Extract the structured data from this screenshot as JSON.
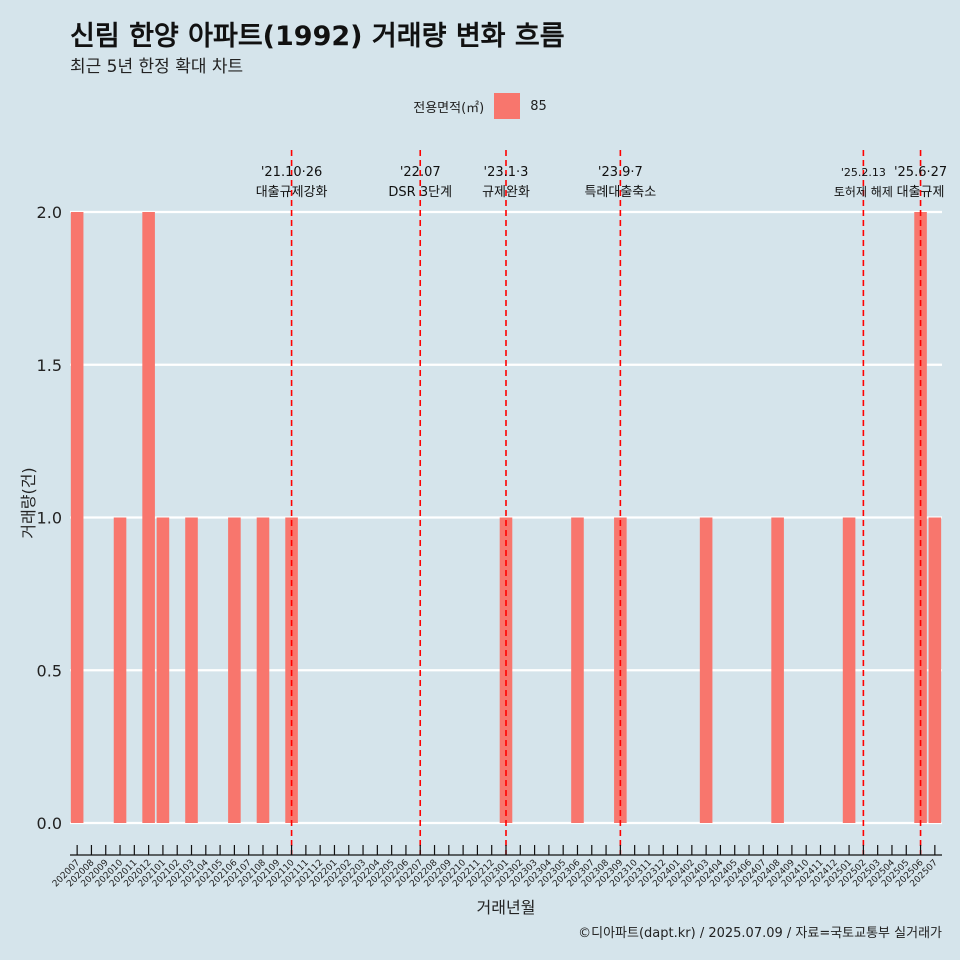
{
  "title": "신림 한양 아파트(1992) 거래량 변화 흐름",
  "subtitle": "최근 5년 한정 확대 차트",
  "caption": "©디아파트(dapt.kr) / 2025.07.09 / 자료=국토교통부 실거래가",
  "legend": {
    "title": "전용면적(㎡)",
    "item": "85"
  },
  "colors": {
    "bar": "#f8766d",
    "background": "#d5e4eb",
    "event_line": "#ff0000"
  },
  "chart_data": {
    "type": "bar",
    "xlabel": "거래년월",
    "ylabel": "거래량(건)",
    "ylim": [
      0,
      2
    ],
    "yticks": [
      "0.0",
      "0.5",
      "1.0",
      "1.5",
      "2.0"
    ],
    "yticks_values": [
      0,
      0.5,
      1.0,
      1.5,
      2.0
    ],
    "grid": true,
    "legend_position": "top",
    "categories": [
      "202007",
      "202008",
      "202009",
      "202010",
      "202011",
      "202012",
      "202101",
      "202102",
      "202103",
      "202104",
      "202105",
      "202106",
      "202107",
      "202108",
      "202109",
      "202110",
      "202111",
      "202112",
      "202201",
      "202202",
      "202203",
      "202204",
      "202205",
      "202206",
      "202207",
      "202208",
      "202209",
      "202210",
      "202211",
      "202212",
      "202301",
      "202302",
      "202303",
      "202304",
      "202305",
      "202306",
      "202307",
      "202308",
      "202309",
      "202310",
      "202311",
      "202312",
      "202401",
      "202402",
      "202403",
      "202404",
      "202405",
      "202406",
      "202407",
      "202408",
      "202409",
      "202410",
      "202411",
      "202412",
      "202501",
      "202502",
      "202503",
      "202504",
      "202505",
      "202506",
      "202507"
    ],
    "series": [
      {
        "name": "85",
        "values": [
          2,
          0,
          0,
          1,
          0,
          2,
          1,
          0,
          1,
          0,
          0,
          1,
          0,
          1,
          0,
          1,
          0,
          0,
          0,
          0,
          0,
          0,
          0,
          0,
          0,
          0,
          0,
          0,
          0,
          0,
          1,
          0,
          0,
          0,
          0,
          1,
          0,
          0,
          1,
          0,
          0,
          0,
          0,
          0,
          1,
          0,
          0,
          0,
          0,
          1,
          0,
          0,
          0,
          0,
          1,
          0,
          0,
          0,
          0,
          2,
          1
        ]
      }
    ],
    "annotations": [
      {
        "x": "202110",
        "date": "'21.10·26",
        "label": "대출규제강화"
      },
      {
        "x": "202207",
        "date": "'22.07",
        "label": "DSR 3단계"
      },
      {
        "x": "202301",
        "date": "'23.1·3",
        "label": "규제완화"
      },
      {
        "x": "202309",
        "date": "'23.9·7",
        "label": "특례대출축소"
      },
      {
        "x": "202502",
        "date": "'25.2.13",
        "label": "토허제 해제"
      },
      {
        "x": "202506",
        "date": "'25.6·27",
        "label": "대출규제"
      }
    ]
  }
}
